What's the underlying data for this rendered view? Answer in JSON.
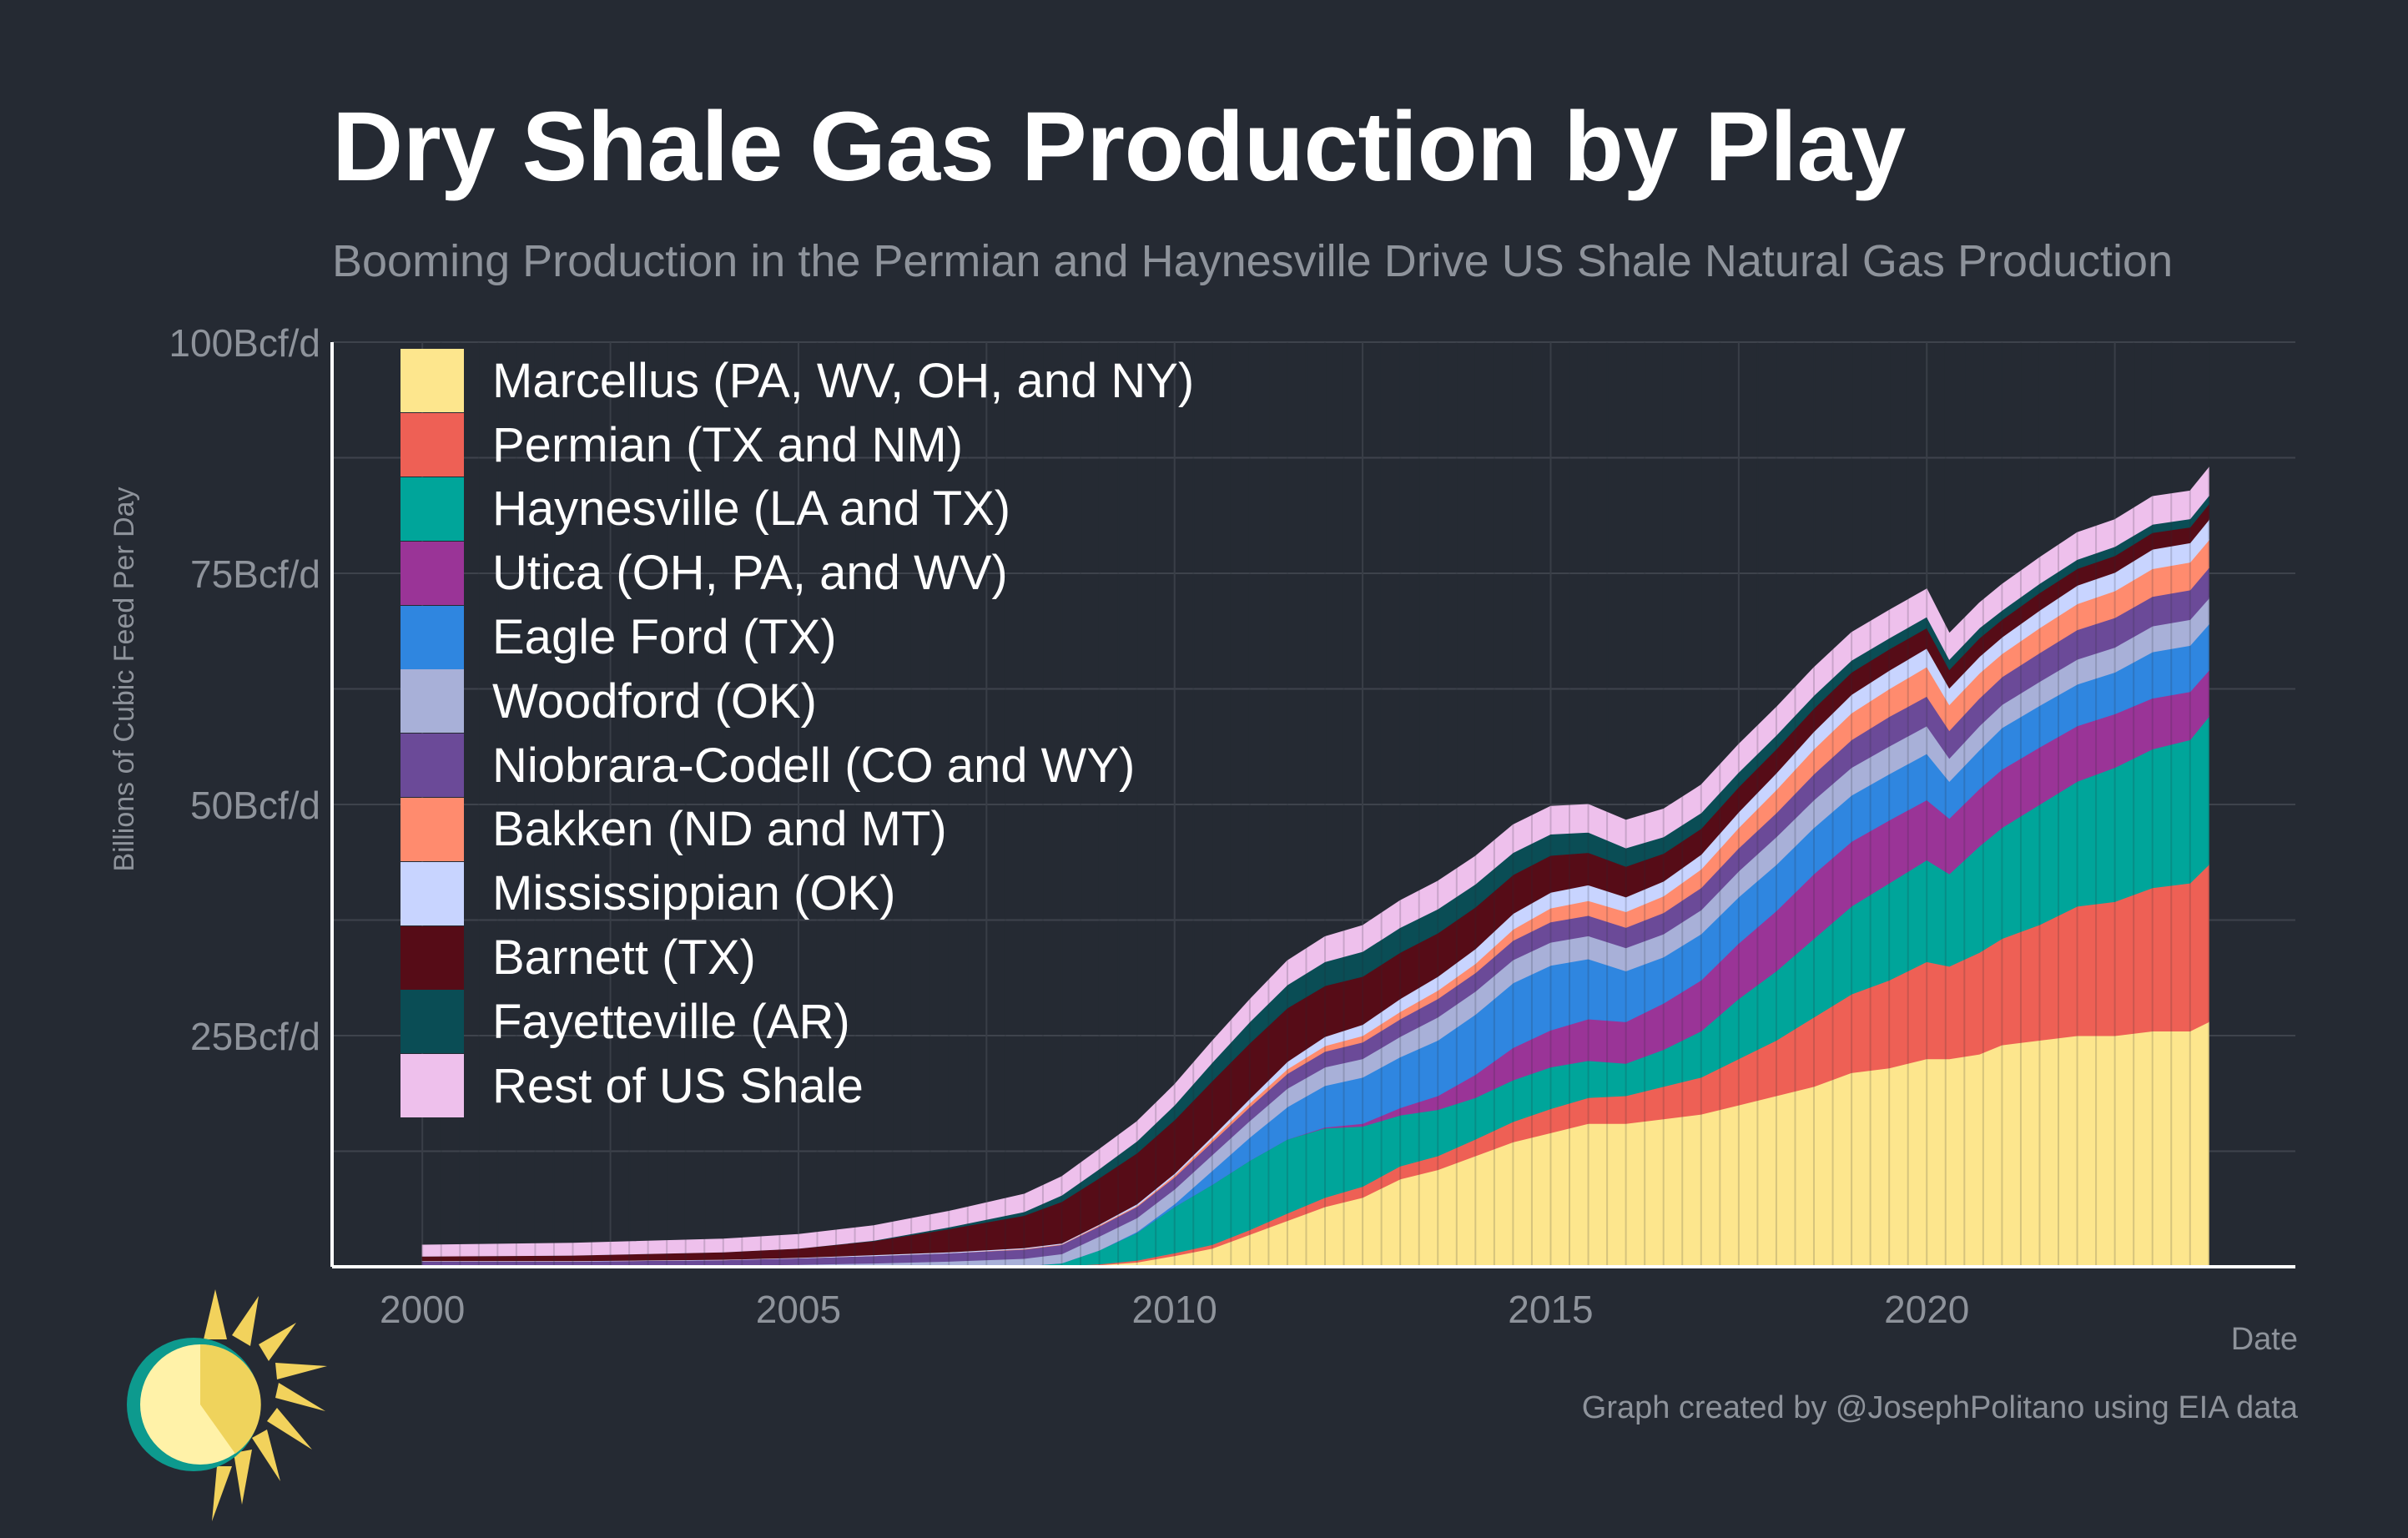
{
  "chart_data": {
    "type": "area",
    "style": "stacked monthly bars",
    "title": "Dry Shale Gas Production by Play",
    "subtitle": "Booming Production in the Permian and Haynesville Drive US Shale Natural Gas Production",
    "xlabel": "Date",
    "ylabel": "Billions of Cubic Feed Per Day",
    "credit": "Graph created by @JosephPolitano using EIA data",
    "xlim": [
      1998.8,
      2024.9
    ],
    "ylim": [
      0,
      100
    ],
    "x_ticks": [
      2000,
      2005,
      2010,
      2015,
      2020
    ],
    "x_tick_labels": [
      "2000",
      "2005",
      "2010",
      "2015",
      "2020"
    ],
    "y_ticks": [
      25,
      50,
      75,
      100
    ],
    "y_tick_labels": [
      "25Bcf/d",
      "50Bcf/d",
      "75Bcf/d",
      "100Bcf/d"
    ],
    "grid": true,
    "legend_position": "top-left",
    "x": [
      2000,
      2002,
      2004,
      2005,
      2006,
      2007,
      2008,
      2008.5,
      2009,
      2009.5,
      2010,
      2010.5,
      2011,
      2011.5,
      2012,
      2012.5,
      2013,
      2013.5,
      2014,
      2014.5,
      2015,
      2015.5,
      2016,
      2016.5,
      2017,
      2017.5,
      2018,
      2018.5,
      2019,
      2019.5,
      2020,
      2020.3,
      2020.7,
      2021,
      2021.5,
      2022,
      2022.5,
      2023,
      2023.5,
      2023.75
    ],
    "series": [
      {
        "name": "Marcellus (PA, WV, OH, and NY)",
        "color": "#fde68d",
        "values": [
          0,
          0,
          0,
          0,
          0,
          0,
          0,
          0,
          0.2,
          0.5,
          1.2,
          2,
          3.5,
          5,
          6.5,
          7.5,
          9.5,
          10.5,
          12,
          13.5,
          14.5,
          15.5,
          15.5,
          16,
          16.5,
          17.5,
          18.5,
          19.5,
          21,
          21.5,
          22.5,
          22.5,
          23,
          24,
          24.5,
          25,
          25,
          25.5,
          25.5,
          26.5
        ]
      },
      {
        "name": "Permian (TX and NM)",
        "color": "#ee6055",
        "values": [
          0.05,
          0.05,
          0.05,
          0.05,
          0.1,
          0.1,
          0.1,
          0.1,
          0.1,
          0.2,
          0.3,
          0.4,
          0.5,
          0.8,
          1.0,
          1.2,
          1.4,
          1.5,
          1.8,
          2.2,
          2.6,
          2.8,
          3,
          3.5,
          4,
          5,
          6,
          7.5,
          8.5,
          9.5,
          10.5,
          10,
          11,
          11.5,
          12.5,
          14,
          14.5,
          15.5,
          16,
          17
        ]
      },
      {
        "name": "Haynesville (LA and TX)",
        "color": "#00a59a",
        "values": [
          0,
          0,
          0,
          0,
          0,
          0,
          0,
          0.3,
          1.5,
          3,
          5,
          6.5,
          7.5,
          8,
          7.5,
          6.5,
          5.5,
          5,
          4.5,
          4.5,
          4.5,
          4,
          3.5,
          4,
          5,
          6.5,
          7.5,
          8.5,
          9.5,
          10.5,
          11,
          10,
          11.5,
          12,
          13,
          13.5,
          14.5,
          15,
          15.5,
          16
        ]
      },
      {
        "name": "Utica (OH, PA, and WV)",
        "color": "#9a3497",
        "values": [
          0,
          0,
          0,
          0,
          0,
          0,
          0,
          0,
          0,
          0,
          0,
          0,
          0,
          0,
          0.1,
          0.3,
          0.8,
          1.5,
          2.5,
          3.5,
          4,
          4.5,
          4.5,
          5,
          5.5,
          6,
          6.5,
          7,
          7,
          6.8,
          6.5,
          6,
          6.2,
          6.3,
          6.2,
          6.0,
          5.8,
          5.5,
          5.2,
          5
        ]
      },
      {
        "name": "Eagle Ford (TX)",
        "color": "#2f86e0",
        "values": [
          0,
          0,
          0,
          0,
          0,
          0,
          0,
          0,
          0,
          0.1,
          0.3,
          1.5,
          2.5,
          3.5,
          4.5,
          5,
          5.5,
          6,
          6.5,
          7,
          7,
          6.5,
          5.5,
          5,
          5,
          5,
          5,
          5,
          5,
          5,
          5,
          4,
          4.2,
          4.5,
          4.5,
          4.5,
          4.5,
          5,
          5,
          5
        ]
      },
      {
        "name": "Woodford (OK)",
        "color": "#a8b0d8",
        "values": [
          0.05,
          0.05,
          0.1,
          0.2,
          0.3,
          0.5,
          0.8,
          1,
          1.5,
          1.5,
          1.6,
          1.7,
          1.8,
          2,
          2,
          2,
          2.2,
          2.5,
          2.5,
          2.5,
          2.5,
          2.5,
          2.5,
          2.5,
          2.6,
          2.8,
          3,
          3,
          3,
          3,
          3,
          2.5,
          2.6,
          2.5,
          2.6,
          2.7,
          2.7,
          2.8,
          2.8,
          2.8
        ]
      },
      {
        "name": "Niobrara-Codell (CO and WY)",
        "color": "#6b4a98",
        "values": [
          0.5,
          0.5,
          0.6,
          0.7,
          0.8,
          0.9,
          1,
          1,
          1.1,
          1.2,
          1.3,
          1.4,
          1.5,
          1.6,
          1.7,
          1.8,
          1.9,
          2,
          2,
          2.1,
          2.2,
          2.2,
          2.2,
          2.3,
          2.4,
          2.5,
          2.6,
          2.8,
          3,
          3.2,
          3.2,
          3,
          3,
          3,
          3.1,
          3.2,
          3.2,
          3.2,
          3.2,
          3.3
        ]
      },
      {
        "name": "Bakken (ND and MT)",
        "color": "#ff8b6e",
        "values": [
          0,
          0,
          0,
          0,
          0,
          0,
          0.05,
          0.05,
          0.1,
          0.1,
          0.2,
          0.3,
          0.4,
          0.5,
          0.6,
          0.7,
          0.8,
          0.9,
          1,
          1.2,
          1.5,
          1.6,
          1.7,
          1.8,
          2,
          2.2,
          2.5,
          2.7,
          2.9,
          3,
          3.2,
          2.8,
          2.7,
          2.5,
          2.7,
          2.8,
          2.9,
          3,
          3,
          3
        ]
      },
      {
        "name": "Mississippian (OK)",
        "color": "#c8d4ff",
        "values": [
          0.05,
          0.05,
          0.05,
          0.05,
          0.1,
          0.1,
          0.1,
          0.1,
          0.1,
          0.2,
          0.2,
          0.3,
          0.5,
          0.8,
          1,
          1.2,
          1.4,
          1.5,
          1.6,
          1.7,
          1.7,
          1.7,
          1.6,
          1.6,
          1.6,
          1.7,
          1.8,
          1.9,
          2,
          2,
          2,
          1.8,
          1.8,
          1.8,
          1.9,
          2,
          2,
          2.1,
          2.1,
          2.2
        ]
      },
      {
        "name": "Barnett (TX)",
        "color": "#560c17",
        "values": [
          0.5,
          0.6,
          0.8,
          1.0,
          1.5,
          2.5,
          3.5,
          4.5,
          5,
          5.5,
          5.8,
          6,
          6,
          5.8,
          5.5,
          5.2,
          5,
          4.7,
          4.5,
          4.2,
          4,
          3.5,
          3.3,
          3,
          2.8,
          2.7,
          2.6,
          2.5,
          2.4,
          2.3,
          2.2,
          2.0,
          2.0,
          1.9,
          1.9,
          1.8,
          1.8,
          1.8,
          1.7,
          1.7
        ]
      },
      {
        "name": "Fayetteville (AR)",
        "color": "#0a4d55",
        "values": [
          0,
          0,
          0,
          0,
          0.05,
          0.2,
          0.4,
          0.7,
          1,
          1.3,
          1.6,
          2,
          2.3,
          2.5,
          2.6,
          2.7,
          2.7,
          2.6,
          2.5,
          2.4,
          2.3,
          2.2,
          2,
          1.8,
          1.7,
          1.6,
          1.5,
          1.4,
          1.3,
          1.2,
          1.2,
          1.1,
          1.1,
          1.0,
          1.0,
          1.0,
          1.0,
          0.9,
          0.9,
          0.9
        ]
      },
      {
        "name": "Rest of US Shale",
        "color": "#eec0ec",
        "values": [
          1.2,
          1.3,
          1.4,
          1.5,
          1.6,
          1.7,
          1.9,
          2,
          2.1,
          2.1,
          2.2,
          2.3,
          2.4,
          2.6,
          2.7,
          2.8,
          2.9,
          3,
          3,
          3,
          3,
          3,
          3,
          3,
          3,
          3,
          3,
          3,
          3,
          3,
          3,
          2.8,
          2.7,
          2.8,
          2.8,
          2.9,
          2.9,
          3,
          3,
          3
        ]
      }
    ]
  }
}
